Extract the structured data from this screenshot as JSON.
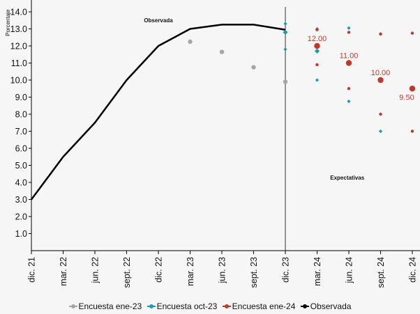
{
  "chart_data": {
    "type": "line",
    "ylabel": "Porcentaje",
    "ylim": [
      0,
      14.7
    ],
    "yticks": [
      "1.0",
      "2.0",
      "3.0",
      "4.0",
      "5.0",
      "6.0",
      "7.0",
      "8.0",
      "9.0",
      "10.0",
      "11.0",
      "12.0",
      "13.0",
      "14.0"
    ],
    "x_labels": [
      "dic. 21",
      "mar. 22",
      "jun. 22",
      "sept. 22",
      "dic. 22",
      "mar. 23",
      "jun. 23",
      "sept. 23",
      "dic. 23",
      "mar. 24",
      "jun. 24",
      "sept. 24",
      "dic. 24"
    ],
    "annotations": {
      "observed": "Observada",
      "expected": "Expectativas"
    },
    "observed": {
      "name": "Observada",
      "color": "#000000",
      "values": [
        3.0,
        5.5,
        7.5,
        10.0,
        12.0,
        13.0,
        13.25,
        13.25,
        12.95
      ]
    },
    "series": [
      {
        "name": "Encuesta ene-23",
        "color": "#a6a6a6",
        "points": [
          {
            "x": 5,
            "y": 12.25
          },
          {
            "x": 6,
            "y": 11.65
          },
          {
            "x": 7,
            "y": 10.75
          },
          {
            "x": 8,
            "y": 9.9
          }
        ]
      },
      {
        "name": "Encuesta oct-23",
        "color": "#1a9bb5",
        "medians": [
          {
            "x": 8,
            "y": 12.8
          },
          {
            "x": 9,
            "y": 11.7
          }
        ],
        "ranges": [
          {
            "x": 8,
            "min": 11.8,
            "max": 13.3
          },
          {
            "x": 9,
            "min": 10.0,
            "max": 13.0
          },
          {
            "x": 10,
            "min": 8.75,
            "max": 13.05
          },
          {
            "x": 11,
            "min": 7.0,
            "max": 12.7
          }
        ]
      },
      {
        "name": "Encuesta ene-24",
        "color": "#c0392b",
        "medians": [
          {
            "x": 9,
            "y": 12.0,
            "label": "12.00"
          },
          {
            "x": 10,
            "y": 11.0,
            "label": "11.00"
          },
          {
            "x": 11,
            "y": 10.0,
            "label": "10.00"
          },
          {
            "x": 12,
            "y": 9.5,
            "label": "9.50"
          }
        ],
        "ranges": [
          {
            "x": 9,
            "min": 10.9,
            "max": 12.95
          },
          {
            "x": 10,
            "min": 9.5,
            "max": 12.8
          },
          {
            "x": 11,
            "min": 8.0,
            "max": 12.7
          },
          {
            "x": 12,
            "min": 7.0,
            "max": 12.75
          }
        ]
      }
    ],
    "divider_x": 8,
    "legend_position": "bottom",
    "grid": false
  }
}
